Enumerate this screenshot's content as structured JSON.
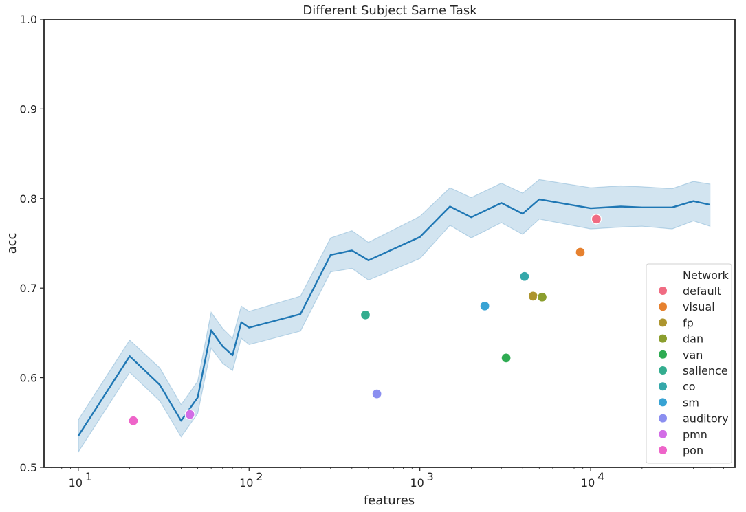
{
  "chart_data": {
    "type": "line",
    "title": "Different Subject Same Task",
    "xlabel": "features",
    "ylabel": "acc",
    "xscale": "log",
    "xlim": [
      6.3,
      70000
    ],
    "ylim": [
      0.5,
      1.0
    ],
    "x_ticks": [
      {
        "value": 10,
        "base": "10",
        "exp": "1"
      },
      {
        "value": 100,
        "base": "10",
        "exp": "2"
      },
      {
        "value": 1000,
        "base": "10",
        "exp": "3"
      },
      {
        "value": 10000,
        "base": "10",
        "exp": "4"
      }
    ],
    "y_ticks": [
      "0.5",
      "0.6",
      "0.7",
      "0.8",
      "0.9",
      "1.0"
    ],
    "grid": false,
    "line_color": "#1f77b4",
    "band_color": "#1f77b4",
    "line": {
      "x": [
        10,
        20,
        30,
        40,
        50,
        60,
        70,
        80,
        90,
        100,
        200,
        300,
        400,
        500,
        1000,
        1500,
        2000,
        3000,
        4000,
        5000,
        10000,
        15000,
        20000,
        30000,
        40000,
        50000
      ],
      "y": [
        0.535,
        0.624,
        0.592,
        0.552,
        0.578,
        0.653,
        0.635,
        0.625,
        0.662,
        0.656,
        0.671,
        0.737,
        0.742,
        0.731,
        0.757,
        0.791,
        0.779,
        0.795,
        0.783,
        0.799,
        0.789,
        0.791,
        0.79,
        0.79,
        0.797,
        0.793
      ],
      "ci_lower": [
        0.517,
        0.606,
        0.574,
        0.534,
        0.56,
        0.633,
        0.616,
        0.608,
        0.644,
        0.637,
        0.652,
        0.718,
        0.722,
        0.709,
        0.733,
        0.77,
        0.756,
        0.773,
        0.76,
        0.777,
        0.766,
        0.768,
        0.769,
        0.766,
        0.775,
        0.769
      ],
      "ci_upper": [
        0.553,
        0.642,
        0.611,
        0.57,
        0.596,
        0.673,
        0.655,
        0.644,
        0.68,
        0.674,
        0.691,
        0.756,
        0.764,
        0.751,
        0.78,
        0.812,
        0.801,
        0.817,
        0.806,
        0.821,
        0.812,
        0.814,
        0.813,
        0.811,
        0.819,
        0.816
      ]
    },
    "legend_title": "Network",
    "legend_position": "lower-right",
    "scatter": [
      {
        "name": "default",
        "color": "#f06b82",
        "x": 10800,
        "y": 0.777
      },
      {
        "name": "visual",
        "color": "#e6812f",
        "x": 8700,
        "y": 0.74
      },
      {
        "name": "fp",
        "color": "#ad952e",
        "x": 4600,
        "y": 0.691
      },
      {
        "name": "dan",
        "color": "#8b9e2e",
        "x": 5200,
        "y": 0.69
      },
      {
        "name": "van",
        "color": "#2eab52",
        "x": 3200,
        "y": 0.622
      },
      {
        "name": "salience",
        "color": "#33ad8f",
        "x": 480,
        "y": 0.67
      },
      {
        "name": "co",
        "color": "#35a8aa",
        "x": 4100,
        "y": 0.713
      },
      {
        "name": "sm",
        "color": "#38a3d4",
        "x": 2400,
        "y": 0.68
      },
      {
        "name": "auditory",
        "color": "#8b8ff0",
        "x": 560,
        "y": 0.582
      },
      {
        "name": "pmn",
        "color": "#d26de6",
        "x": 45,
        "y": 0.559
      },
      {
        "name": "pon",
        "color": "#ee64c9",
        "x": 21,
        "y": 0.552
      }
    ]
  }
}
